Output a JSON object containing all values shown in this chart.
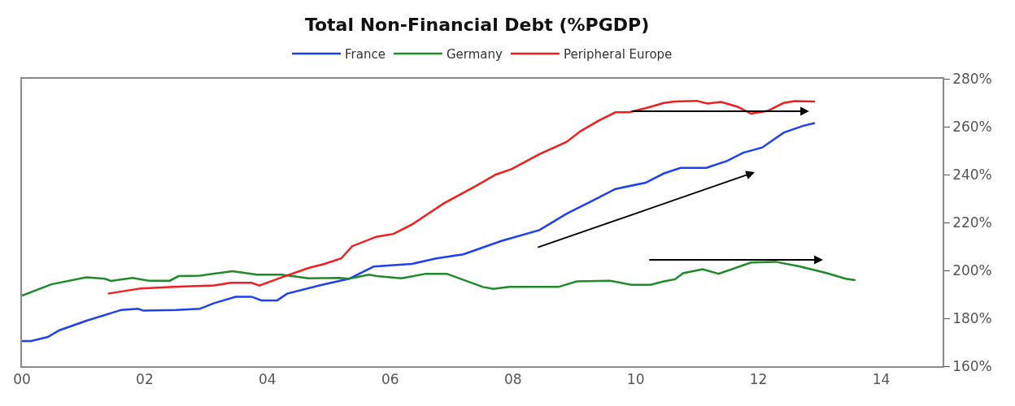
{
  "chart_data": {
    "type": "line",
    "title": "Total Non-Financial Debt (%PGDP)",
    "xlim": [
      0,
      15
    ],
    "xticks": [
      {
        "value": 0,
        "label": "00"
      },
      {
        "value": 2,
        "label": "02"
      },
      {
        "value": 4,
        "label": "04"
      },
      {
        "value": 6,
        "label": "06"
      },
      {
        "value": 8,
        "label": "08"
      },
      {
        "value": 10,
        "label": "10"
      },
      {
        "value": 12,
        "label": "12"
      },
      {
        "value": 14,
        "label": "14"
      }
    ],
    "ylim": [
      160,
      280
    ],
    "yticks": [
      {
        "value": 160,
        "label": "160%"
      },
      {
        "value": 180,
        "label": "180%"
      },
      {
        "value": 200,
        "label": "200%"
      },
      {
        "value": 220,
        "label": "220%"
      },
      {
        "value": 240,
        "label": "240%"
      },
      {
        "value": 260,
        "label": "260%"
      },
      {
        "value": 280,
        "label": "280%"
      }
    ],
    "legend": "top",
    "marker": "none",
    "line_style": "solid",
    "series": [
      {
        "name": "France",
        "color": "#1f3ff0",
        "x": [
          0,
          0.15,
          0.42,
          0.61,
          1.05,
          1.62,
          1.89,
          1.98,
          2.51,
          2.9,
          3.13,
          3.48,
          3.74,
          3.9,
          4.16,
          4.32,
          4.89,
          5.33,
          5.73,
          6.35,
          6.75,
          7.19,
          7.81,
          8.43,
          8.87,
          9.31,
          9.67,
          10.16,
          10.46,
          10.73,
          11.15,
          11.49,
          11.75,
          12.06,
          12.41,
          12.72,
          12.92
        ],
        "values": [
          170.5,
          170.5,
          172.2,
          175,
          179,
          183.5,
          184,
          183.2,
          183.5,
          184,
          186.3,
          189,
          189,
          187.5,
          187.5,
          190.3,
          194,
          196.5,
          201.6,
          202.7,
          205,
          206.7,
          212.3,
          216.8,
          223.6,
          229.3,
          234,
          236.6,
          240.5,
          242.8,
          242.8,
          245.7,
          249.1,
          251.3,
          257.5,
          260.3,
          261.5
        ]
      },
      {
        "name": "Germany",
        "color": "#1e8a2a",
        "x": [
          0,
          0.48,
          1.05,
          1.35,
          1.45,
          1.8,
          2.07,
          2.41,
          2.55,
          2.9,
          3.43,
          3.83,
          4.23,
          4.67,
          5.16,
          5.33,
          5.65,
          5.78,
          6.18,
          6.58,
          6.92,
          7.51,
          7.68,
          7.94,
          8.74,
          9.04,
          9.58,
          9.93,
          10.24,
          10.46,
          10.64,
          10.77,
          11.09,
          11.35,
          11.88,
          12.28,
          12.68,
          13.12,
          13.42,
          13.58
        ],
        "values": [
          189.5,
          194.2,
          197.1,
          196.5,
          195.6,
          196.9,
          195.7,
          195.7,
          197.6,
          197.8,
          199.7,
          198.2,
          198.2,
          196.7,
          196.9,
          196.5,
          198.2,
          197.6,
          196.7,
          198.6,
          198.6,
          193.1,
          192.3,
          193.1,
          193.1,
          195.4,
          195.7,
          194,
          194,
          195.4,
          196.3,
          198.8,
          200.5,
          198.6,
          203.3,
          203.6,
          201.6,
          198.8,
          196.5,
          195.9
        ]
      },
      {
        "name": "Peripheral Europe",
        "color": "#f01e1e",
        "x": [
          1.4,
          1.94,
          2.47,
          3.13,
          3.4,
          3.74,
          3.87,
          4.23,
          4.67,
          4.93,
          5.2,
          5.38,
          5.78,
          6.05,
          6.35,
          6.88,
          7.37,
          7.72,
          7.98,
          8.43,
          8.87,
          9.1,
          9.4,
          9.67,
          9.89,
          10.16,
          10.46,
          10.64,
          10.99,
          11.17,
          11.39,
          11.66,
          11.88,
          12.15,
          12.41,
          12.59,
          12.92
        ],
        "values": [
          190.3,
          192.5,
          193.1,
          193.7,
          194.8,
          194.8,
          193.7,
          197.1,
          201,
          202.7,
          205,
          210.1,
          214.1,
          215.2,
          219.1,
          228.1,
          234.9,
          240,
          242.3,
          248.5,
          253.6,
          258.1,
          262.6,
          266,
          266,
          267.7,
          269.9,
          270.5,
          270.8,
          269.7,
          270.3,
          268.3,
          265.4,
          266.6,
          269.9,
          270.7,
          270.5
        ]
      }
    ]
  }
}
